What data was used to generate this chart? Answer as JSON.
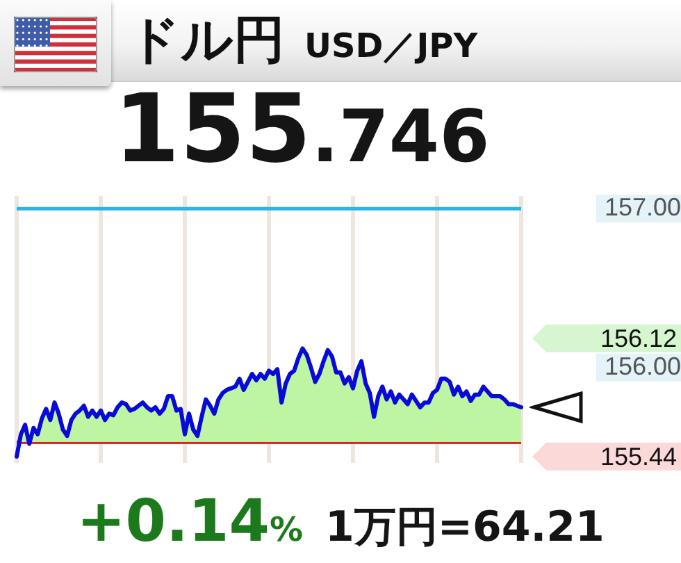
{
  "chart_data": {
    "type": "area",
    "title": "ドル円",
    "subtitle": "USD／JPY",
    "categories": [
      null,
      null,
      null,
      null,
      null,
      null,
      null,
      null,
      null,
      null,
      null,
      null,
      null,
      null,
      null,
      null,
      null,
      null,
      null,
      null,
      null,
      null,
      null,
      null,
      null,
      null,
      null,
      null,
      null,
      null,
      null,
      null,
      null,
      null,
      null,
      null,
      null,
      null,
      null,
      null,
      null,
      null,
      null,
      null,
      null,
      null,
      null,
      null,
      null,
      null,
      null,
      null,
      null,
      null,
      null,
      null,
      null,
      null,
      null,
      null,
      null,
      null,
      null,
      null,
      null,
      null,
      null,
      null,
      null,
      null,
      null,
      null,
      null,
      null,
      null,
      null,
      null,
      null,
      null,
      null,
      null,
      null,
      null,
      null,
      null,
      null,
      null,
      null,
      null,
      null,
      null,
      null,
      null,
      null,
      null,
      null,
      null,
      null,
      null,
      null,
      null,
      null,
      null,
      null,
      null,
      null,
      null,
      null,
      null,
      null,
      null,
      null,
      null,
      null,
      null,
      null,
      null,
      null,
      null,
      null,
      null
    ],
    "series": [
      {
        "color": "#bdf5a3",
        "values": [
          155.44,
          155.58,
          155.64,
          155.52,
          155.62,
          155.58,
          155.68,
          155.74,
          155.67,
          155.78,
          155.71,
          155.61,
          155.57,
          155.67,
          155.71,
          155.73,
          155.76,
          155.69,
          155.73,
          155.69,
          155.73,
          155.67,
          155.71,
          155.7,
          155.75,
          155.78,
          155.77,
          155.73,
          155.74,
          155.76,
          155.78,
          155.75,
          155.73,
          155.75,
          155.71,
          155.74,
          155.82,
          155.82,
          155.73,
          155.74,
          155.58,
          155.71,
          155.61,
          155.57,
          155.69,
          155.8,
          155.76,
          155.71,
          155.8,
          155.84,
          155.86,
          155.87,
          155.88,
          155.93,
          155.86,
          155.91,
          155.96,
          155.92,
          155.96,
          155.93,
          155.98,
          155.96,
          155.99,
          155.78,
          155.9,
          155.96,
          155.98,
          156.06,
          156.12,
          156.08,
          156,
          155.91,
          155.96,
          156.04,
          156.11,
          156.07,
          155.97,
          155.97,
          155.9,
          155.94,
          155.87,
          155.98,
          156.04,
          155.9,
          155.84,
          155.69,
          155.82,
          155.88,
          155.8,
          155.85,
          155.78,
          155.83,
          155.8,
          155.77,
          155.83,
          155.79,
          155.75,
          155.78,
          155.78,
          155.84,
          155.86,
          155.93,
          155.93,
          155.91,
          155.83,
          155.88,
          155.82,
          155.85,
          155.79,
          155.83,
          155.83,
          155.88,
          155.85,
          155.82,
          155.82,
          155.82,
          155.8,
          155.77,
          155.77,
          155.76,
          155.75
        ]
      }
    ],
    "ylim": [
      155.4,
      157.08
    ],
    "yticks": [
      {
        "value": 156,
        "label": "156.00"
      },
      {
        "value": 157,
        "label": "157.00"
      }
    ],
    "ref_lines": [
      {
        "axis": "y",
        "value": 157,
        "color": "#2bb5e3"
      },
      {
        "axis": "y",
        "value": 155.53,
        "color": "#dd1111"
      }
    ],
    "annotations": [
      "155.746",
      "156.12",
      "155.44",
      "+0.14%",
      "1万円=64.21"
    ],
    "grid": "x",
    "tick_labels": "y",
    "marker": "none"
  }
}
